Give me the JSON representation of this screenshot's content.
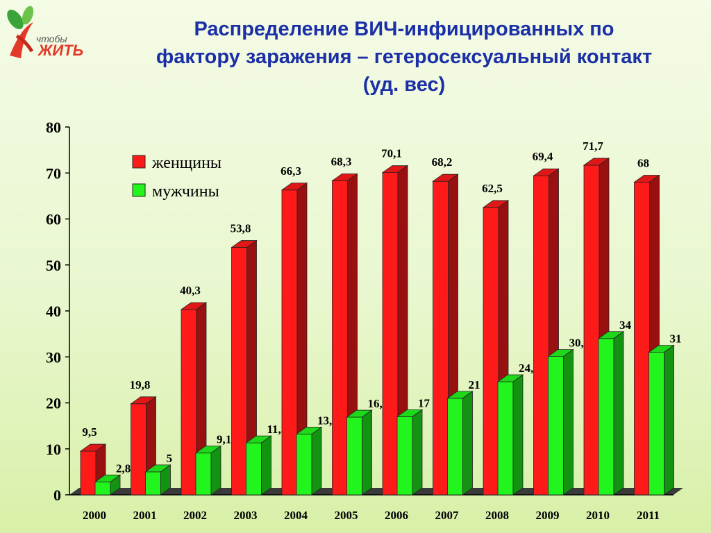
{
  "logo": {
    "small_text": "чтобы",
    "main_text": "ЖИТЬ"
  },
  "title_lines": [
    "Распределение ВИЧ-инфицированных по",
    "фактору заражения – гетеросексуальный контакт",
    "(уд. вес)"
  ],
  "colors": {
    "women": "#ff1a1a",
    "men": "#22f51e",
    "title": "#1b2fa6"
  },
  "chart_data": {
    "type": "bar",
    "categories": [
      "2000",
      "2001",
      "2002",
      "2003",
      "2004",
      "2005",
      "2006",
      "2007",
      "2008",
      "2009",
      "2010",
      "2011"
    ],
    "series": [
      {
        "name": "женщины",
        "values": [
          9.5,
          19.8,
          40.3,
          53.8,
          66.3,
          68.3,
          70.1,
          68.2,
          62.5,
          69.4,
          71.7,
          68
        ],
        "labels": [
          "9,5",
          "19,8",
          "40,3",
          "53,8",
          "66,3",
          "68,3",
          "70,1",
          "68,2",
          "62,5",
          "69,4",
          "71,7",
          "68"
        ]
      },
      {
        "name": "мужчины",
        "values": [
          2.8,
          5,
          9.1,
          11.3,
          13.2,
          16.9,
          17,
          21,
          24.6,
          30.1,
          34,
          31
        ],
        "labels": [
          "2,8",
          "5",
          "9,1",
          "11,3",
          "13,2",
          "16,9",
          "17",
          "21",
          "24,6",
          "30,1",
          "34",
          "31"
        ]
      }
    ],
    "ylim": [
      0,
      80
    ],
    "yticks": [
      "0",
      "10",
      "20",
      "30",
      "40",
      "50",
      "60",
      "70",
      "80"
    ],
    "legend_position": "top-left",
    "grid": false
  }
}
